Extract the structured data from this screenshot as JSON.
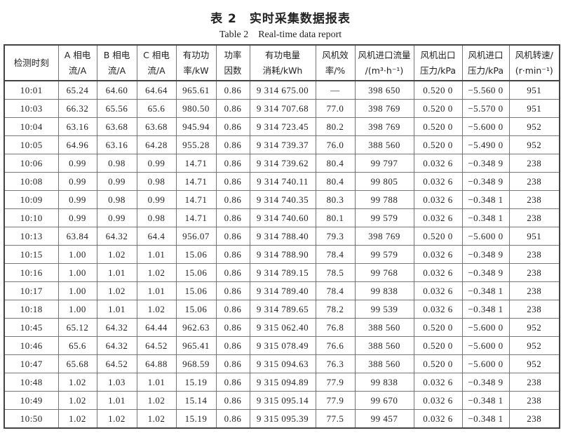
{
  "title": "表 2　实时采集数据报表",
  "subtitle": "Table 2　Real-time data report",
  "columns": [
    {
      "l1": "检测时刻",
      "l2": ""
    },
    {
      "l1": "A 相电",
      "l2": "流/A"
    },
    {
      "l1": "B 相电",
      "l2": "流/A"
    },
    {
      "l1": "C 相电",
      "l2": "流/A"
    },
    {
      "l1": "有功功",
      "l2": "率/kW"
    },
    {
      "l1": "功率",
      "l2": "因数"
    },
    {
      "l1": "有功电量",
      "l2": "消耗/kWh"
    },
    {
      "l1": "风机效",
      "l2": "率/%"
    },
    {
      "l1": "风机进口流量",
      "l2": "/(m³·h⁻¹)"
    },
    {
      "l1": "风机出口",
      "l2": "压力/kPa"
    },
    {
      "l1": "风机进口",
      "l2": "压力/kPa"
    },
    {
      "l1": "风机转速/",
      "l2": "(r·min⁻¹)"
    }
  ],
  "rows": [
    [
      "10:01",
      "65.24",
      "64.60",
      "64.64",
      "965.61",
      "0.86",
      "9 314 675.00",
      "—",
      "398 650",
      "0.520 0",
      "−5.560 0",
      "951"
    ],
    [
      "10:03",
      "66.32",
      "65.56",
      "65.6",
      "980.50",
      "0.86",
      "9 314 707.68",
      "77.0",
      "398 769",
      "0.520 0",
      "−5.570 0",
      "951"
    ],
    [
      "10:04",
      "63.16",
      "63.68",
      "63.68",
      "945.94",
      "0.86",
      "9 314 723.45",
      "80.2",
      "398 769",
      "0.520 0",
      "−5.600 0",
      "952"
    ],
    [
      "10:05",
      "64.96",
      "63.16",
      "64.28",
      "955.28",
      "0.86",
      "9 314 739.37",
      "76.0",
      "388 560",
      "0.520 0",
      "−5.490 0",
      "952"
    ],
    [
      "10:06",
      "0.99",
      "0.98",
      "0.99",
      "14.71",
      "0.86",
      "9 314 739.62",
      "80.4",
      "99 797",
      "0.032 6",
      "−0.348 9",
      "238"
    ],
    [
      "10:08",
      "0.99",
      "0.99",
      "0.98",
      "14.71",
      "0.86",
      "9 314 740.11",
      "80.4",
      "99 805",
      "0.032 6",
      "−0.348 9",
      "238"
    ],
    [
      "10:09",
      "0.99",
      "0.98",
      "0.99",
      "14.71",
      "0.86",
      "9 314 740.35",
      "80.3",
      "99 788",
      "0.032 6",
      "−0.348 1",
      "238"
    ],
    [
      "10:10",
      "0.99",
      "0.99",
      "0.98",
      "14.71",
      "0.86",
      "9 314 740.60",
      "80.1",
      "99 579",
      "0.032 6",
      "−0.348 1",
      "238"
    ],
    [
      "10:13",
      "63.84",
      "64.32",
      "64.4",
      "956.07",
      "0.86",
      "9 314 788.40",
      "79.3",
      "398 769",
      "0.520 0",
      "−5.600 0",
      "951"
    ],
    [
      "10:15",
      "1.00",
      "1.02",
      "1.01",
      "15.06",
      "0.86",
      "9 314 788.90",
      "78.4",
      "99 579",
      "0.032 6",
      "−0.348 9",
      "238"
    ],
    [
      "10:16",
      "1.00",
      "1.01",
      "1.02",
      "15.06",
      "0.86",
      "9 314 789.15",
      "78.5",
      "99 768",
      "0.032 6",
      "−0.348 9",
      "238"
    ],
    [
      "10:17",
      "1.00",
      "1.02",
      "1.01",
      "15.06",
      "0.86",
      "9 314 789.40",
      "78.4",
      "99 838",
      "0.032 6",
      "−0.348 1",
      "238"
    ],
    [
      "10:18",
      "1.00",
      "1.01",
      "1.02",
      "15.06",
      "0.86",
      "9 314 789.65",
      "78.2",
      "99 539",
      "0.032 6",
      "−0.348 1",
      "238"
    ],
    [
      "10:45",
      "65.12",
      "64.32",
      "64.44",
      "962.63",
      "0.86",
      "9 315 062.40",
      "76.8",
      "388 560",
      "0.520 0",
      "−5.600 0",
      "952"
    ],
    [
      "10:46",
      "65.6",
      "64.32",
      "64.52",
      "965.41",
      "0.86",
      "9 315 078.49",
      "76.6",
      "388 560",
      "0.520 0",
      "−5.600 0",
      "952"
    ],
    [
      "10:47",
      "65.68",
      "64.52",
      "64.88",
      "968.59",
      "0.86",
      "9 315 094.63",
      "76.3",
      "388 560",
      "0.520 0",
      "−5.600 0",
      "952"
    ],
    [
      "10:48",
      "1.02",
      "1.03",
      "1.01",
      "15.19",
      "0.86",
      "9 315 094.89",
      "77.9",
      "99 838",
      "0.032 6",
      "−0.348 9",
      "238"
    ],
    [
      "10:49",
      "1.02",
      "1.01",
      "1.02",
      "15.14",
      "0.86",
      "9 315 095.14",
      "77.9",
      "99 670",
      "0.032 6",
      "−0.348 1",
      "238"
    ],
    [
      "10:50",
      "1.02",
      "1.02",
      "1.02",
      "15.19",
      "0.86",
      "9 315 095.39",
      "77.5",
      "99 457",
      "0.032 6",
      "−0.348 1",
      "238"
    ]
  ]
}
